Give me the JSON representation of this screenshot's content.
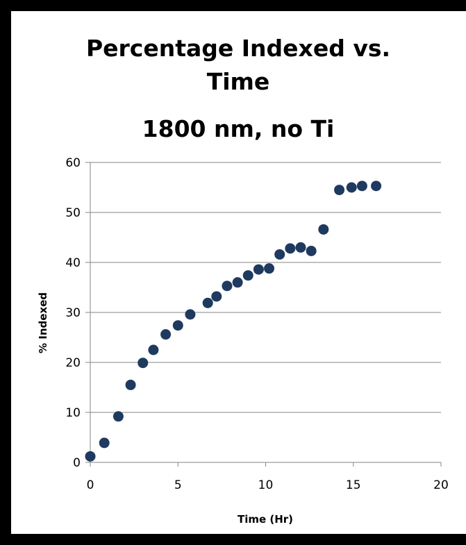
{
  "chart_data": {
    "type": "scatter",
    "title_lines": [
      "Percentage Indexed vs.",
      "Time",
      "1800 nm, no Ti"
    ],
    "xlabel": "Time (Hr)",
    "ylabel": "% Indexed",
    "xlim": [
      0,
      20
    ],
    "ylim": [
      0,
      60
    ],
    "xticks": [
      0,
      5,
      10,
      15,
      20
    ],
    "yticks": [
      0,
      10,
      20,
      30,
      40,
      50,
      60
    ],
    "grid": "horizontal",
    "legend": "none",
    "marker_color": "#1f3a5f",
    "grid_color": "#868686",
    "series": [
      {
        "x": [
          0.0,
          0.8,
          1.6,
          2.3,
          3.0,
          3.6,
          4.3,
          5.0,
          5.7,
          6.7,
          7.2,
          7.8,
          8.4,
          9.0,
          9.6,
          10.2,
          10.8,
          11.4,
          12.0,
          12.6,
          13.3,
          14.2,
          14.9,
          15.5,
          16.3
        ],
        "y": [
          1.2,
          3.9,
          9.2,
          15.5,
          19.9,
          22.5,
          25.6,
          27.4,
          29.6,
          31.9,
          33.2,
          35.3,
          36.0,
          37.4,
          38.6,
          38.8,
          41.6,
          42.8,
          43.0,
          42.3,
          46.6,
          54.5,
          55.0,
          55.3,
          55.3
        ]
      }
    ]
  }
}
